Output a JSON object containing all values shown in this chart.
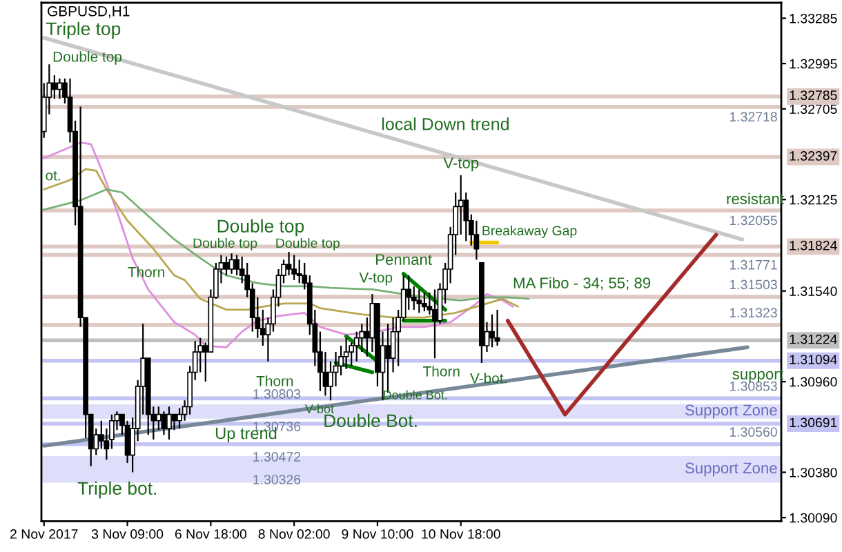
{
  "chart_data": {
    "type": "candlestick",
    "title": "GBPUSD,H1",
    "categories": [
      "2 Nov 2017",
      null,
      null,
      null,
      null,
      null,
      null,
      null,
      null,
      null,
      null,
      null,
      null,
      null,
      null,
      null,
      "3 Nov 09:00",
      null,
      null,
      null,
      null,
      null,
      null,
      null,
      null,
      null,
      null,
      null,
      null,
      null,
      null,
      null,
      "6 Nov 18:00",
      null,
      null,
      null,
      null,
      null,
      null,
      null,
      null,
      null,
      null,
      null,
      null,
      null,
      null,
      null,
      "8 Nov 02:00",
      null,
      null,
      null,
      null,
      null,
      null,
      null,
      null,
      null,
      null,
      null,
      null,
      null,
      null,
      null,
      "9 Nov 10:00",
      null,
      null,
      null,
      null,
      null,
      null,
      null,
      null,
      null,
      null,
      null,
      null,
      null,
      null,
      null,
      "10 Nov 18:00",
      null,
      null,
      null,
      null,
      null,
      null,
      null,
      null,
      null,
      null,
      null,
      null,
      null,
      null,
      null,
      null,
      null,
      null,
      null,
      null,
      null,
      null,
      null,
      null,
      null,
      null,
      null,
      null,
      null,
      null,
      null,
      null,
      null,
      null,
      null,
      null,
      null,
      null,
      null,
      null,
      null,
      null,
      null,
      null,
      null,
      null,
      null,
      null,
      null,
      null,
      null,
      null,
      null,
      null,
      null,
      null,
      null,
      null,
      null,
      null,
      null
    ],
    "ohlc": [
      [
        1.3256,
        1.3287,
        1.3252,
        1.3278
      ],
      [
        1.3278,
        1.3299,
        1.3267,
        1.3287
      ],
      [
        1.3287,
        1.3292,
        1.3277,
        1.3283
      ],
      [
        1.3283,
        1.329,
        1.3277,
        1.3287
      ],
      [
        1.3287,
        1.329,
        1.3274,
        1.3278
      ],
      [
        1.3278,
        1.329,
        1.3249,
        1.3256
      ],
      [
        1.3256,
        1.3263,
        1.3196,
        1.3208
      ],
      [
        1.3208,
        1.3272,
        1.3131,
        1.3137
      ],
      [
        1.3137,
        1.3137,
        1.306,
        1.3075
      ],
      [
        1.3075,
        1.3075,
        1.3042,
        1.3053
      ],
      [
        1.3053,
        1.3066,
        1.3049,
        1.3062
      ],
      [
        1.3062,
        1.3071,
        1.3053,
        1.3058
      ],
      [
        1.3058,
        1.3066,
        1.3046,
        1.3053
      ],
      [
        1.3059,
        1.3075,
        1.3053,
        1.3071
      ],
      [
        1.3071,
        1.3077,
        1.3065,
        1.3075
      ],
      [
        1.3075,
        1.3075,
        1.3062,
        1.3068
      ],
      [
        1.3068,
        1.3071,
        1.3044,
        1.3049
      ],
      [
        1.3049,
        1.3073,
        1.3038,
        1.3066
      ],
      [
        1.3066,
        1.3097,
        1.3058,
        1.3093
      ],
      [
        1.3093,
        1.3133,
        1.3075,
        1.3111
      ],
      [
        1.3111,
        1.3111,
        1.3062,
        1.3075
      ],
      [
        1.3075,
        1.308,
        1.3059,
        1.3071
      ],
      [
        1.3071,
        1.308,
        1.3065,
        1.3075
      ],
      [
        1.3075,
        1.3077,
        1.3062,
        1.3066
      ],
      [
        1.3066,
        1.308,
        1.3059,
        1.3075
      ],
      [
        1.3075,
        1.3075,
        1.3065,
        1.3071
      ],
      [
        1.3071,
        1.3079,
        1.3066,
        1.3075
      ],
      [
        1.3075,
        1.3084,
        1.3071,
        1.308
      ],
      [
        1.308,
        1.3106,
        1.3075,
        1.3102
      ],
      [
        1.3102,
        1.3122,
        1.3097,
        1.3115
      ],
      [
        1.3115,
        1.3124,
        1.3102,
        1.3119
      ],
      [
        1.3119,
        1.3121,
        1.3096,
        1.3115
      ],
      [
        1.3115,
        1.3155,
        1.3115,
        1.315
      ],
      [
        1.315,
        1.3172,
        1.3149,
        1.3168
      ],
      [
        1.3168,
        1.3177,
        1.3159,
        1.3172
      ],
      [
        1.3172,
        1.3176,
        1.3164,
        1.3168
      ],
      [
        1.3168,
        1.3178,
        1.3165,
        1.3174
      ],
      [
        1.3174,
        1.3177,
        1.3164,
        1.3168
      ],
      [
        1.3168,
        1.3176,
        1.3159,
        1.3164
      ],
      [
        1.3164,
        1.3172,
        1.315,
        1.3155
      ],
      [
        1.3155,
        1.3159,
        1.3128,
        1.3137
      ],
      [
        1.3137,
        1.315,
        1.3124,
        1.313
      ],
      [
        1.313,
        1.3142,
        1.3119,
        1.3126
      ],
      [
        1.3126,
        1.3137,
        1.3109,
        1.3133
      ],
      [
        1.3133,
        1.3155,
        1.3128,
        1.315
      ],
      [
        1.315,
        1.3168,
        1.3144,
        1.3164
      ],
      [
        1.3164,
        1.3174,
        1.3159,
        1.3171
      ],
      [
        1.3171,
        1.3179,
        1.3164,
        1.3168
      ],
      [
        1.3168,
        1.3177,
        1.3161,
        1.3165
      ],
      [
        1.3165,
        1.3174,
        1.3159,
        1.3164
      ],
      [
        1.3164,
        1.3172,
        1.3155,
        1.3159
      ],
      [
        1.3159,
        1.3164,
        1.3126,
        1.3133
      ],
      [
        1.3133,
        1.3142,
        1.3106,
        1.3115
      ],
      [
        1.3115,
        1.3128,
        1.309,
        1.3102
      ],
      [
        1.3102,
        1.3115,
        1.3087,
        1.3093
      ],
      [
        1.3093,
        1.3109,
        1.3084,
        1.3102
      ],
      [
        1.3102,
        1.3115,
        1.3093,
        1.3106
      ],
      [
        1.3106,
        1.3119,
        1.31,
        1.3112
      ],
      [
        1.3112,
        1.3124,
        1.3104,
        1.3115
      ],
      [
        1.3115,
        1.3121,
        1.3106,
        1.3119
      ],
      [
        1.3119,
        1.3128,
        1.3109,
        1.3124
      ],
      [
        1.3124,
        1.3133,
        1.3115,
        1.3128
      ],
      [
        1.3128,
        1.3137,
        1.3112,
        1.3124
      ],
      [
        1.3124,
        1.3152,
        1.3115,
        1.3146
      ],
      [
        1.3146,
        1.3146,
        1.3093,
        1.3102
      ],
      [
        1.3102,
        1.3128,
        1.3084,
        1.3119
      ],
      [
        1.3119,
        1.3133,
        1.3089,
        1.3111
      ],
      [
        1.3111,
        1.3137,
        1.3102,
        1.3128
      ],
      [
        1.3128,
        1.3142,
        1.3106,
        1.3137
      ],
      [
        1.3137,
        1.3164,
        1.3135,
        1.3155
      ],
      [
        1.3155,
        1.3164,
        1.3142,
        1.315
      ],
      [
        1.315,
        1.3157,
        1.3142,
        1.3148
      ],
      [
        1.3148,
        1.3155,
        1.314,
        1.3146
      ],
      [
        1.3146,
        1.3153,
        1.3141,
        1.3144
      ],
      [
        1.3144,
        1.3153,
        1.3139,
        1.3142
      ],
      [
        1.3142,
        1.3155,
        1.3111,
        1.3135
      ],
      [
        1.3135,
        1.3159,
        1.3133,
        1.3155
      ],
      [
        1.3155,
        1.3172,
        1.3146,
        1.3168
      ],
      [
        1.3168,
        1.3195,
        1.3159,
        1.319
      ],
      [
        1.319,
        1.3217,
        1.3177,
        1.3208
      ],
      [
        1.3208,
        1.3228,
        1.319,
        1.3212
      ],
      [
        1.3212,
        1.3217,
        1.3186,
        1.3199
      ],
      [
        1.3199,
        1.3203,
        1.3183,
        1.319
      ],
      [
        1.319,
        1.3199,
        1.3174,
        1.3181
      ],
      [
        1.3172,
        1.3172,
        1.3108,
        1.3119
      ],
      [
        1.3119,
        1.3134,
        1.3115,
        1.3128
      ],
      [
        1.3128,
        1.3139,
        1.3118,
        1.3124
      ],
      [
        1.3124,
        1.3142,
        1.3119,
        1.3122
      ],
      null,
      null,
      null,
      null,
      null,
      null,
      null,
      null,
      null,
      null,
      null,
      null,
      null,
      null,
      null,
      null,
      null,
      null,
      null,
      null,
      null,
      null,
      null,
      null,
      null,
      null,
      null,
      null,
      null,
      null,
      null,
      null,
      null,
      null,
      null,
      null,
      null,
      null,
      null,
      null,
      null,
      null,
      null,
      null,
      null,
      null,
      null,
      null,
      null,
      null,
      null,
      null,
      null,
      null
    ],
    "series": [
      {
        "type": "line",
        "color": "#e08ee0",
        "values": [
          1.3239,
          null,
          null,
          null,
          null,
          1.3246,
          null,
          1.3249,
          null,
          1.3248,
          null,
          1.3232,
          null,
          null,
          1.3205,
          null,
          null,
          1.3175,
          null,
          null,
          1.3155,
          null,
          null,
          null,
          null,
          1.3134,
          null,
          null,
          null,
          1.3126,
          null,
          1.3119,
          null,
          null,
          null,
          1.3118,
          null,
          null,
          1.3128,
          null,
          null,
          1.3135,
          null,
          null,
          null,
          1.3138,
          null,
          null,
          null,
          null,
          1.314,
          null,
          null,
          1.3131,
          null,
          null,
          null,
          null,
          1.3126,
          null,
          null,
          null,
          null,
          null,
          1.3128,
          null,
          null,
          null,
          1.3131,
          null,
          null,
          null,
          null,
          1.3131,
          null,
          null,
          null,
          null,
          1.3134,
          null,
          null,
          null,
          null,
          1.3146,
          null,
          1.3152,
          null,
          null,
          1.3148,
          null,
          1.3144,
          null,
          null,
          null,
          null,
          null,
          null,
          null,
          null,
          null,
          null,
          null,
          null,
          null,
          null,
          null,
          null,
          null,
          null,
          null,
          null,
          null,
          null,
          null,
          null,
          null,
          null,
          null,
          null,
          null,
          null,
          null,
          null,
          null,
          null,
          null,
          null,
          null,
          null,
          null,
          null,
          null,
          null,
          null,
          null,
          null,
          null,
          null,
          null,
          null,
          null,
          null
        ]
      },
      {
        "type": "line",
        "color": "#b8a850",
        "values": [
          1.3219,
          null,
          null,
          null,
          null,
          1.3225,
          null,
          null,
          1.3232,
          null,
          1.3231,
          null,
          1.3219,
          null,
          null,
          null,
          1.3199,
          null,
          null,
          null,
          null,
          1.3181,
          null,
          null,
          null,
          1.3164,
          null,
          1.3161,
          null,
          null,
          1.3149,
          null,
          null,
          null,
          null,
          1.3142,
          null,
          null,
          null,
          1.3142,
          null,
          null,
          1.3144,
          null,
          null,
          null,
          1.3146,
          null,
          null,
          null,
          null,
          1.3146,
          null,
          1.3143,
          null,
          null,
          null,
          null,
          null,
          null,
          null,
          1.3139,
          null,
          null,
          null,
          null,
          null,
          1.3137,
          null,
          null,
          null,
          null,
          null,
          1.3137,
          null,
          null,
          null,
          null,
          null,
          1.314,
          null,
          null,
          null,
          1.3144,
          null,
          null,
          null,
          null,
          1.3149,
          null,
          null,
          1.3144,
          null,
          null,
          null,
          null,
          null,
          null,
          null,
          null,
          null,
          null,
          null,
          null,
          null,
          null,
          null,
          null,
          null,
          null,
          null,
          null,
          null,
          null,
          null,
          null,
          null,
          null,
          null,
          null,
          null,
          null,
          null,
          null,
          null,
          null,
          null,
          null,
          null,
          null,
          null,
          null,
          null,
          null,
          null,
          null,
          null,
          null,
          null,
          null,
          null,
          null
        ]
      },
      {
        "type": "line",
        "color": "#78b078",
        "values": [
          1.3206,
          null,
          null,
          null,
          null,
          null,
          null,
          1.3212,
          null,
          null,
          null,
          null,
          1.3219,
          null,
          null,
          1.3217,
          null,
          null,
          null,
          null,
          1.3202,
          null,
          null,
          null,
          null,
          1.3187,
          null,
          null,
          null,
          null,
          1.3175,
          null,
          null,
          null,
          1.3166,
          1.3164,
          null,
          null,
          null,
          null,
          null,
          1.3159,
          null,
          null,
          null,
          null,
          1.3157,
          null,
          null,
          null,
          null,
          1.3157,
          null,
          null,
          null,
          1.3156,
          null,
          null,
          null,
          null,
          null,
          null,
          null,
          1.3155,
          null,
          null,
          null,
          null,
          null,
          null,
          null,
          null,
          null,
          1.315,
          null,
          null,
          null,
          null,
          null,
          null,
          1.3148,
          null,
          null,
          null,
          null,
          1.315,
          null,
          null,
          null,
          1.315,
          null,
          null,
          null,
          1.3149,
          null,
          null,
          null,
          null,
          null,
          null,
          null,
          null,
          null,
          null,
          null,
          null,
          null,
          null,
          null,
          null,
          null,
          null,
          null,
          null,
          null,
          null,
          null,
          null,
          null,
          null,
          null,
          null,
          null,
          null,
          null,
          null,
          null,
          null,
          null,
          null,
          null,
          null,
          null,
          null,
          null,
          null,
          null,
          null,
          null,
          null,
          null,
          null
        ]
      },
      {
        "type": "line",
        "color": "#c8c8c8",
        "values": [
          1.3316,
          null,
          null,
          null,
          null,
          null,
          null,
          null,
          null,
          null,
          null,
          null,
          null,
          null,
          null,
          null,
          null,
          null,
          null,
          null,
          null,
          null,
          null,
          null,
          null,
          null,
          null,
          null,
          null,
          null,
          null,
          null,
          null,
          null,
          null,
          null,
          null,
          null,
          null,
          null,
          null,
          null,
          null,
          null,
          null,
          null,
          null,
          null,
          null,
          null,
          null,
          null,
          null,
          null,
          null,
          null,
          null,
          null,
          null,
          null,
          null,
          null,
          null,
          null,
          null,
          null,
          null,
          null,
          null,
          null,
          null,
          null,
          null,
          null,
          null,
          null,
          null,
          null,
          null,
          null,
          null,
          null,
          null,
          null,
          null,
          null,
          null,
          null,
          null,
          null,
          null,
          null,
          null,
          null,
          null,
          null,
          null,
          null,
          null,
          null,
          null,
          null,
          null,
          null,
          null,
          null,
          null,
          null,
          null,
          null,
          null,
          null,
          null,
          null,
          null,
          null,
          null,
          null,
          null,
          null,
          null,
          null,
          null,
          null,
          null,
          null,
          null,
          null,
          null,
          null,
          null,
          null,
          null,
          null,
          1.3187,
          null,
          null,
          null,
          null,
          null,
          null,
          null
        ]
      },
      {
        "type": "line",
        "color": "#778899",
        "values": [
          1.3055,
          null,
          null,
          null,
          null,
          null,
          null,
          null,
          null,
          null,
          null,
          null,
          null,
          null,
          null,
          null,
          null,
          null,
          null,
          null,
          null,
          null,
          null,
          null,
          null,
          null,
          null,
          null,
          null,
          null,
          null,
          null,
          null,
          null,
          null,
          null,
          null,
          null,
          null,
          null,
          null,
          null,
          null,
          null,
          null,
          null,
          null,
          null,
          null,
          null,
          null,
          null,
          null,
          null,
          null,
          null,
          null,
          null,
          null,
          null,
          null,
          null,
          null,
          null,
          null,
          null,
          null,
          null,
          null,
          null,
          null,
          null,
          null,
          null,
          null,
          null,
          null,
          null,
          null,
          null,
          null,
          null,
          null,
          null,
          null,
          null,
          null,
          null,
          null,
          null,
          null,
          null,
          null,
          null,
          null,
          null,
          null,
          null,
          null,
          null,
          null,
          null,
          null,
          null,
          null,
          null,
          null,
          null,
          null,
          null,
          null,
          null,
          null,
          null,
          null,
          null,
          null,
          null,
          null,
          null,
          null,
          null,
          null,
          null,
          null,
          null,
          null,
          null,
          null,
          null,
          null,
          null,
          null,
          null,
          null,
          1.3118,
          null,
          null,
          null,
          null,
          null,
          null
        ]
      },
      {
        "type": "line",
        "color": "#a52a2a",
        "values": [
          null,
          null,
          null,
          null,
          null,
          null,
          null,
          null,
          null,
          null,
          null,
          null,
          null,
          null,
          null,
          null,
          null,
          null,
          null,
          null,
          null,
          null,
          null,
          null,
          null,
          null,
          null,
          null,
          null,
          null,
          null,
          null,
          null,
          null,
          null,
          null,
          null,
          null,
          null,
          null,
          null,
          null,
          null,
          null,
          null,
          null,
          null,
          null,
          null,
          null,
          null,
          null,
          null,
          null,
          null,
          null,
          null,
          null,
          null,
          null,
          null,
          null,
          null,
          null,
          null,
          null,
          null,
          null,
          null,
          null,
          null,
          null,
          null,
          null,
          null,
          null,
          null,
          null,
          null,
          null,
          null,
          null,
          null,
          null,
          null,
          null,
          null,
          null,
          null,
          1.3135,
          null,
          null,
          null,
          null,
          null,
          null,
          null,
          null,
          null,
          null,
          1.3075,
          null,
          null,
          null,
          null,
          null,
          null,
          null,
          null,
          null,
          null,
          null,
          null,
          null,
          null,
          null,
          null,
          null,
          null,
          null,
          null,
          null,
          null,
          null,
          null,
          null,
          null,
          null,
          null,
          1.319,
          null,
          null,
          null,
          null,
          null,
          null,
          null,
          null,
          null,
          null,
          null,
          null
        ]
      },
      {
        "type": "line",
        "color": "#008000",
        "values": [
          null,
          null,
          null,
          null,
          null,
          null,
          null,
          null,
          null,
          null,
          null,
          null,
          null,
          null,
          null,
          null,
          null,
          null,
          null,
          null,
          null,
          null,
          null,
          null,
          null,
          null,
          null,
          null,
          null,
          null,
          null,
          null,
          null,
          null,
          null,
          null,
          null,
          null,
          null,
          null,
          null,
          null,
          null,
          null,
          null,
          null,
          null,
          null,
          null,
          null,
          null,
          null,
          null,
          null,
          null,
          null,
          null,
          null,
          1.3125,
          null,
          null,
          null,
          null,
          null,
          1.3109,
          null,
          null,
          null,
          null,
          null,
          null,
          null,
          null,
          null,
          null,
          null,
          null,
          null,
          null,
          null,
          null,
          null,
          null,
          null,
          null,
          null,
          null,
          null,
          null,
          null,
          null,
          null,
          null,
          null,
          null,
          null,
          null,
          null,
          null,
          null,
          null,
          null,
          null,
          null,
          null,
          null,
          null,
          null,
          null,
          null,
          null,
          null,
          null,
          null,
          null,
          null,
          null,
          null,
          null,
          null,
          null,
          null,
          null,
          null,
          null,
          null,
          null,
          null,
          null,
          null,
          null,
          null,
          null,
          null,
          null,
          null,
          null,
          null,
          null,
          null,
          null,
          null
        ]
      },
      {
        "type": "line",
        "color": "#008000",
        "values": [
          null,
          null,
          null,
          null,
          null,
          null,
          null,
          null,
          null,
          null,
          null,
          null,
          null,
          null,
          null,
          null,
          null,
          null,
          null,
          null,
          null,
          null,
          null,
          null,
          null,
          null,
          null,
          null,
          null,
          null,
          null,
          null,
          null,
          null,
          null,
          null,
          null,
          null,
          null,
          null,
          null,
          null,
          null,
          null,
          null,
          null,
          null,
          null,
          null,
          null,
          null,
          null,
          null,
          null,
          null,
          null,
          1.3108,
          null,
          null,
          null,
          null,
          null,
          null,
          1.3102,
          null,
          null,
          null,
          null,
          null,
          null,
          null,
          null,
          null,
          null,
          null,
          null,
          null,
          null,
          null,
          null,
          null,
          null,
          null,
          null,
          null,
          null,
          null,
          null,
          null,
          null,
          null,
          null,
          null,
          null,
          null,
          null,
          null,
          null,
          null,
          null,
          null,
          null,
          null,
          null,
          null,
          null,
          null,
          null,
          null,
          null,
          null,
          null,
          null,
          null,
          null,
          null,
          null,
          null,
          null,
          null,
          null,
          null,
          null,
          null,
          null,
          null,
          null,
          null,
          null,
          null,
          null,
          null,
          null,
          null,
          null,
          null,
          null,
          null,
          null,
          null,
          null,
          null
        ]
      },
      {
        "type": "line",
        "color": "#008000",
        "values": [
          null,
          null,
          null,
          null,
          null,
          null,
          null,
          null,
          null,
          null,
          null,
          null,
          null,
          null,
          null,
          null,
          null,
          null,
          null,
          null,
          null,
          null,
          null,
          null,
          null,
          null,
          null,
          null,
          null,
          null,
          null,
          null,
          null,
          null,
          null,
          null,
          null,
          null,
          null,
          null,
          null,
          null,
          null,
          null,
          null,
          null,
          null,
          null,
          null,
          null,
          null,
          null,
          null,
          null,
          null,
          null,
          null,
          null,
          null,
          null,
          null,
          null,
          null,
          null,
          null,
          null,
          null,
          null,
          null,
          1.3165,
          null,
          null,
          null,
          null,
          null,
          null,
          null,
          1.3142,
          null,
          null,
          null,
          null,
          null,
          null,
          null,
          null,
          null,
          null,
          null,
          null,
          null,
          null,
          null,
          null,
          null,
          null,
          null,
          null,
          null,
          null,
          null,
          null,
          null,
          null,
          null,
          null,
          null,
          null,
          null,
          null,
          null,
          null,
          null,
          null,
          null,
          null,
          null,
          null,
          null,
          null,
          null,
          null,
          null,
          null,
          null,
          null,
          null,
          null,
          null,
          null,
          null,
          null,
          null,
          null,
          null,
          null,
          null,
          null,
          null,
          null,
          null,
          null
        ]
      },
      {
        "type": "line",
        "color": "#008000",
        "values": [
          null,
          null,
          null,
          null,
          null,
          null,
          null,
          null,
          null,
          null,
          null,
          null,
          null,
          null,
          null,
          null,
          null,
          null,
          null,
          null,
          null,
          null,
          null,
          null,
          null,
          null,
          null,
          null,
          null,
          null,
          null,
          null,
          null,
          null,
          null,
          null,
          null,
          null,
          null,
          null,
          null,
          null,
          null,
          null,
          null,
          null,
          null,
          null,
          null,
          null,
          null,
          null,
          null,
          null,
          null,
          null,
          null,
          null,
          null,
          null,
          null,
          null,
          null,
          null,
          null,
          null,
          null,
          null,
          null,
          1.3135,
          null,
          null,
          null,
          null,
          null,
          null,
          null,
          1.3135,
          null,
          null,
          null,
          null,
          null,
          null,
          null,
          null,
          null,
          null,
          null,
          null,
          null,
          null,
          null,
          null,
          null,
          null,
          null,
          null,
          null,
          null,
          null,
          null,
          null,
          null,
          null,
          null,
          null,
          null,
          null,
          null,
          null,
          null,
          null,
          null,
          null,
          null,
          null,
          null,
          null,
          null,
          null,
          null,
          null,
          null,
          null,
          null,
          null,
          null,
          null,
          null,
          null,
          null,
          null,
          null,
          null,
          null,
          null,
          null,
          null,
          null,
          null,
          null
        ]
      },
      {
        "type": "line",
        "color": "#f0c800",
        "values": [
          null,
          null,
          null,
          null,
          null,
          null,
          null,
          null,
          null,
          null,
          null,
          null,
          null,
          null,
          null,
          null,
          null,
          null,
          null,
          null,
          null,
          null,
          null,
          null,
          null,
          null,
          null,
          null,
          null,
          null,
          null,
          null,
          null,
          null,
          null,
          null,
          null,
          null,
          null,
          null,
          null,
          null,
          null,
          null,
          null,
          null,
          null,
          null,
          null,
          null,
          null,
          null,
          null,
          null,
          null,
          null,
          null,
          null,
          null,
          null,
          null,
          null,
          null,
          null,
          null,
          null,
          null,
          null,
          null,
          null,
          null,
          null,
          null,
          null,
          null,
          null,
          null,
          null,
          null,
          null,
          null,
          null,
          1.3185,
          null,
          null,
          null,
          null,
          1.3185,
          null,
          null,
          null,
          null,
          null,
          null,
          null,
          null,
          null,
          null,
          null,
          null,
          null,
          null,
          null,
          null,
          null,
          null,
          null,
          null,
          null,
          null,
          null,
          null,
          null,
          null,
          null,
          null,
          null,
          null,
          null,
          null,
          null,
          null,
          null,
          null,
          null,
          null,
          null,
          null,
          null,
          null,
          null,
          null,
          null,
          null,
          null,
          null,
          null,
          null,
          null,
          null,
          null,
          null
        ]
      }
    ],
    "ref_lines": [
      {
        "axis": "y",
        "value": 1.32785,
        "label": "1.32785",
        "color": "#dfc9c3"
      },
      {
        "axis": "y",
        "value": 1.32718,
        "label": "1.32718",
        "color": "#dfc9c3"
      },
      {
        "axis": "y",
        "value": 1.32397,
        "label": "1.32397",
        "color": "#dfc9c3"
      },
      {
        "axis": "y",
        "value": 1.32055,
        "label": "1.32055",
        "color": "#dfc9c3"
      },
      {
        "axis": "y",
        "value": 1.31824,
        "label": "1.31824",
        "color": "#dfc9c3"
      },
      {
        "axis": "y",
        "value": 1.31771,
        "label": "1.31771",
        "color": "#dfc9c3"
      },
      {
        "axis": "y",
        "value": 1.31503,
        "label": "1.31503",
        "color": "#dfc9c3"
      },
      {
        "axis": "y",
        "value": 1.31323,
        "label": "1.31323",
        "color": "#dfc9c3"
      },
      {
        "axis": "y",
        "value": 1.31224,
        "label": "1.31224",
        "color": "#c0c0c0"
      },
      {
        "axis": "y",
        "value": 1.31094,
        "label": "1.31094",
        "color": "#c4c4f4"
      },
      {
        "axis": "y",
        "value": 1.30853,
        "label": "1.30853",
        "color": "#c4c4f4"
      },
      {
        "axis": "y",
        "value": 1.30691,
        "label": "1.30691",
        "color": "#c4c4f4"
      },
      {
        "axis": "y",
        "value": 1.3056,
        "label": "1.30560",
        "color": "#c4c4f4"
      },
      {
        "axis": "y",
        "value": 1.30803,
        "label": "1.30803",
        "color": "#dedefa"
      },
      {
        "axis": "y",
        "value": 1.30736,
        "label": "1.30736",
        "color": "#dedefa"
      },
      {
        "axis": "y",
        "value": 1.30472,
        "label": "1.30472",
        "color": "#dedefa"
      },
      {
        "axis": "y",
        "value": 1.30326,
        "label": "1.30326",
        "color": "#dedefa"
      }
    ],
    "bands": [
      {
        "axis": "y",
        "from": 1.30736,
        "to": 1.30803,
        "label": "Support Zone",
        "color": "#dedefa"
      },
      {
        "axis": "y",
        "from": 1.30326,
        "to": 1.30472,
        "label": "Support Zone",
        "color": "#dedefa"
      }
    ],
    "annotations": [
      "Triple top",
      "Double top",
      "ot.",
      "Thorn",
      "Double top",
      "Double top",
      "Double top",
      "Thorn",
      "V-top",
      "Pennant",
      "Thorn",
      "V-top",
      "Breakaway Gap",
      "local Down trend",
      "resistant",
      "MA Fibo - 34; 55; 89",
      "V-bot",
      "Double Bot.",
      "Double Bot.",
      "V-bot.",
      "Up trend",
      "support",
      "Triple bot."
    ],
    "ylim": [
      1.30067,
      1.33384
    ],
    "yticks": [
      {
        "value": 1.3009,
        "label": "1.30090"
      },
      {
        "value": 1.3038,
        "label": "1.30380"
      },
      {
        "value": 1.3096,
        "label": "1.30960"
      },
      {
        "value": 1.3154,
        "label": "1.31540"
      },
      1.32125,
      1.32705,
      1.32995,
      1.33285
    ]
  }
}
